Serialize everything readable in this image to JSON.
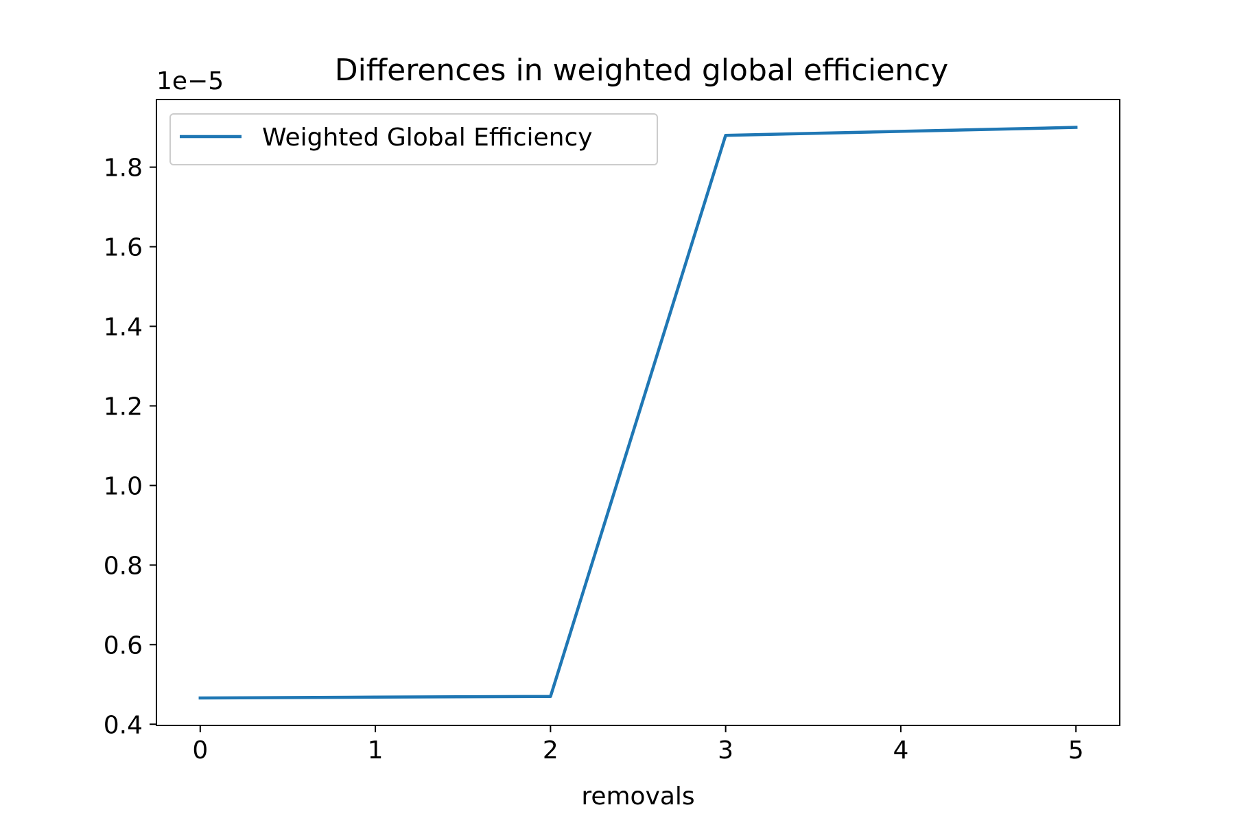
{
  "chart_data": {
    "type": "line",
    "title": "Differences in weighted global efficiency",
    "xlabel": "removals",
    "ylabel": "",
    "y_offset_label": "1e−5",
    "x": [
      0,
      1,
      2,
      3,
      4,
      5
    ],
    "series": [
      {
        "name": "Weighted Global Efficiency",
        "color": "#1f77b4",
        "values": [
          0.466,
          0.468,
          0.47,
          1.88,
          1.89,
          1.9
        ]
      }
    ],
    "xlim": [
      -0.25,
      5.25
    ],
    "ylim": [
      0.397,
      1.97
    ],
    "x_ticks": [
      "0",
      "1",
      "2",
      "3",
      "4",
      "5"
    ],
    "y_ticks": [
      "0.4",
      "0.6",
      "0.8",
      "1.0",
      "1.2",
      "1.4",
      "1.6",
      "1.8"
    ],
    "legend_position": "top-left",
    "grid": false
  }
}
